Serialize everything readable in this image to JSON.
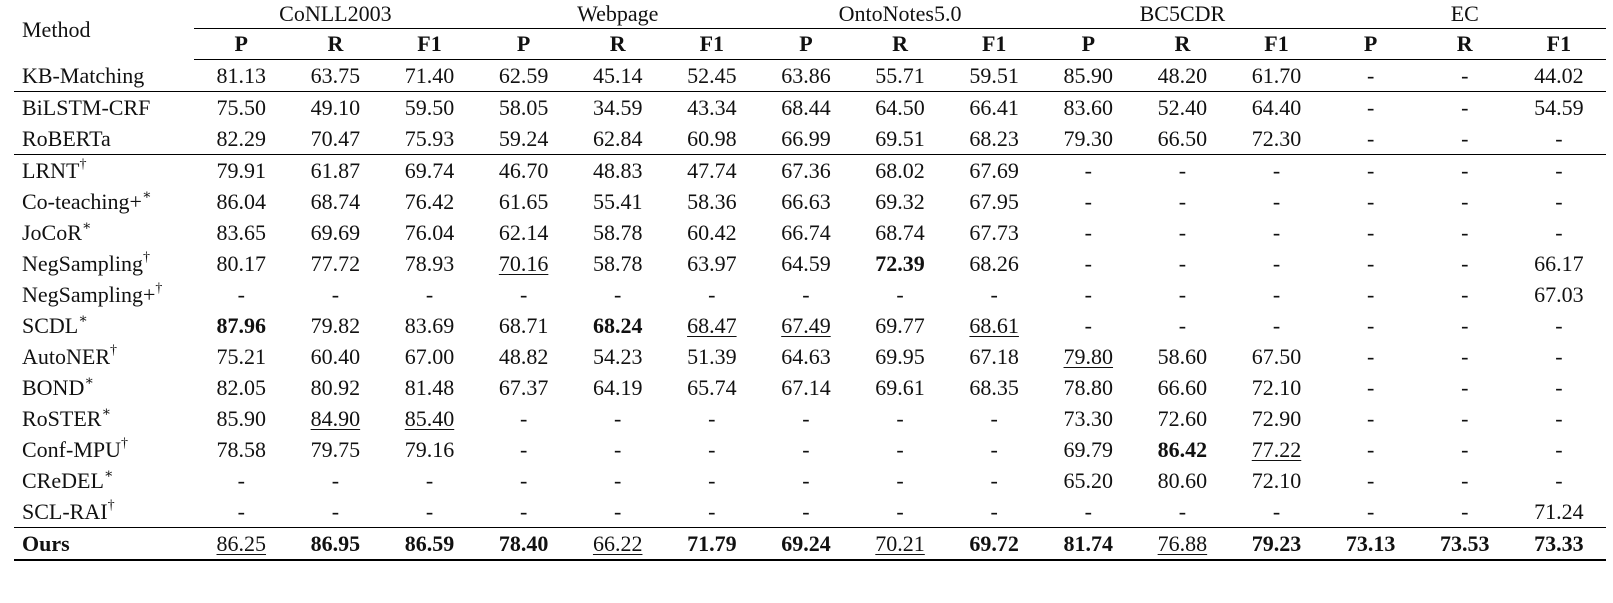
{
  "header": {
    "method": "Method",
    "datasets": [
      "CoNLL2003",
      "Webpage",
      "OntoNotes5.0",
      "BC5CDR",
      "EC"
    ],
    "metrics": [
      "P",
      "R",
      "F1"
    ]
  },
  "rows": [
    {
      "name": "KB-Matching",
      "sup": "",
      "values": [
        "81.13",
        "63.75",
        "71.40",
        "62.59",
        "45.14",
        "52.45",
        "63.86",
        "55.71",
        "59.51",
        "85.90",
        "48.20",
        "61.70",
        "-",
        "-",
        "44.02"
      ]
    },
    {
      "name": "BiLSTM-CRF",
      "sup": "",
      "values": [
        "75.50",
        "49.10",
        "59.50",
        "58.05",
        "34.59",
        "43.34",
        "68.44",
        "64.50",
        "66.41",
        "83.60",
        "52.40",
        "64.40",
        "-",
        "-",
        "54.59"
      ]
    },
    {
      "name": "RoBERTa",
      "sup": "",
      "values": [
        "82.29",
        "70.47",
        "75.93",
        "59.24",
        "62.84",
        "60.98",
        "66.99",
        "69.51",
        "68.23",
        "79.30",
        "66.50",
        "72.30",
        "-",
        "-",
        "-"
      ]
    },
    {
      "name": "LRNT",
      "sup": "†",
      "values": [
        "79.91",
        "61.87",
        "69.74",
        "46.70",
        "48.83",
        "47.74",
        "67.36",
        "68.02",
        "67.69",
        "-",
        "-",
        "-",
        "-",
        "-",
        "-"
      ]
    },
    {
      "name": "Co-teaching+",
      "sup": "∗",
      "values": [
        "86.04",
        "68.74",
        "76.42",
        "61.65",
        "55.41",
        "58.36",
        "66.63",
        "69.32",
        "67.95",
        "-",
        "-",
        "-",
        "-",
        "-",
        "-"
      ]
    },
    {
      "name": "JoCoR",
      "sup": "∗",
      "values": [
        "83.65",
        "69.69",
        "76.04",
        "62.14",
        "58.78",
        "60.42",
        "66.74",
        "68.74",
        "67.73",
        "-",
        "-",
        "-",
        "-",
        "-",
        "-"
      ]
    },
    {
      "name": "NegSampling",
      "sup": "†",
      "values": [
        "80.17",
        "77.72",
        "78.93",
        "70.16",
        "58.78",
        "63.97",
        "64.59",
        "72.39",
        "68.26",
        "-",
        "-",
        "-",
        "-",
        "-",
        "66.17"
      ]
    },
    {
      "name": "NegSampling+",
      "sup": "†",
      "values": [
        "-",
        "-",
        "-",
        "-",
        "-",
        "-",
        "-",
        "-",
        "-",
        "-",
        "-",
        "-",
        "-",
        "-",
        "67.03"
      ]
    },
    {
      "name": "SCDL",
      "sup": "∗",
      "values": [
        "87.96",
        "79.82",
        "83.69",
        "68.71",
        "68.24",
        "68.47",
        "67.49",
        "69.77",
        "68.61",
        "-",
        "-",
        "-",
        "-",
        "-",
        "-"
      ]
    },
    {
      "name": "AutoNER",
      "sup": "†",
      "values": [
        "75.21",
        "60.40",
        "67.00",
        "48.82",
        "54.23",
        "51.39",
        "64.63",
        "69.95",
        "67.18",
        "79.80",
        "58.60",
        "67.50",
        "-",
        "-",
        "-"
      ]
    },
    {
      "name": "BOND",
      "sup": "∗",
      "values": [
        "82.05",
        "80.92",
        "81.48",
        "67.37",
        "64.19",
        "65.74",
        "67.14",
        "69.61",
        "68.35",
        "78.80",
        "66.60",
        "72.10",
        "-",
        "-",
        "-"
      ]
    },
    {
      "name": "RoSTER",
      "sup": "∗",
      "values": [
        "85.90",
        "84.90",
        "85.40",
        "-",
        "-",
        "-",
        "-",
        "-",
        "-",
        "73.30",
        "72.60",
        "72.90",
        "-",
        "-",
        "-"
      ]
    },
    {
      "name": "Conf-MPU",
      "sup": "†",
      "values": [
        "78.58",
        "79.75",
        "79.16",
        "-",
        "-",
        "-",
        "-",
        "-",
        "-",
        "69.79",
        "86.42",
        "77.22",
        "-",
        "-",
        "-"
      ]
    },
    {
      "name": "CReDEL",
      "sup": "∗",
      "values": [
        "-",
        "-",
        "-",
        "-",
        "-",
        "-",
        "-",
        "-",
        "-",
        "65.20",
        "80.60",
        "72.10",
        "-",
        "-",
        "-"
      ]
    },
    {
      "name": "SCL-RAI",
      "sup": "†",
      "values": [
        "-",
        "-",
        "-",
        "-",
        "-",
        "-",
        "-",
        "-",
        "-",
        "-",
        "-",
        "-",
        "-",
        "-",
        "71.24"
      ]
    },
    {
      "name": "Ours",
      "sup": "",
      "values": [
        "86.25",
        "86.95",
        "86.59",
        "78.40",
        "66.22",
        "71.79",
        "69.24",
        "70.21",
        "69.72",
        "81.74",
        "76.88",
        "79.23",
        "73.13",
        "73.53",
        "73.33"
      ]
    }
  ],
  "bold_cells": [
    [
      8,
      0
    ],
    [
      15,
      1
    ],
    [
      15,
      2
    ],
    [
      15,
      3
    ],
    [
      8,
      4
    ],
    [
      15,
      5
    ],
    [
      15,
      6
    ],
    [
      6,
      7
    ],
    [
      15,
      8
    ],
    [
      15,
      9
    ],
    [
      12,
      10
    ],
    [
      15,
      11
    ],
    [
      15,
      12
    ],
    [
      15,
      13
    ],
    [
      15,
      14
    ]
  ],
  "underline_cells": [
    [
      15,
      0
    ],
    [
      11,
      1
    ],
    [
      11,
      2
    ],
    [
      6,
      3
    ],
    [
      15,
      4
    ],
    [
      8,
      5
    ],
    [
      8,
      6
    ],
    [
      15,
      7
    ],
    [
      8,
      8
    ],
    [
      9,
      9
    ],
    [
      15,
      10
    ],
    [
      12,
      11
    ]
  ],
  "bold_row_names": [
    15
  ]
}
